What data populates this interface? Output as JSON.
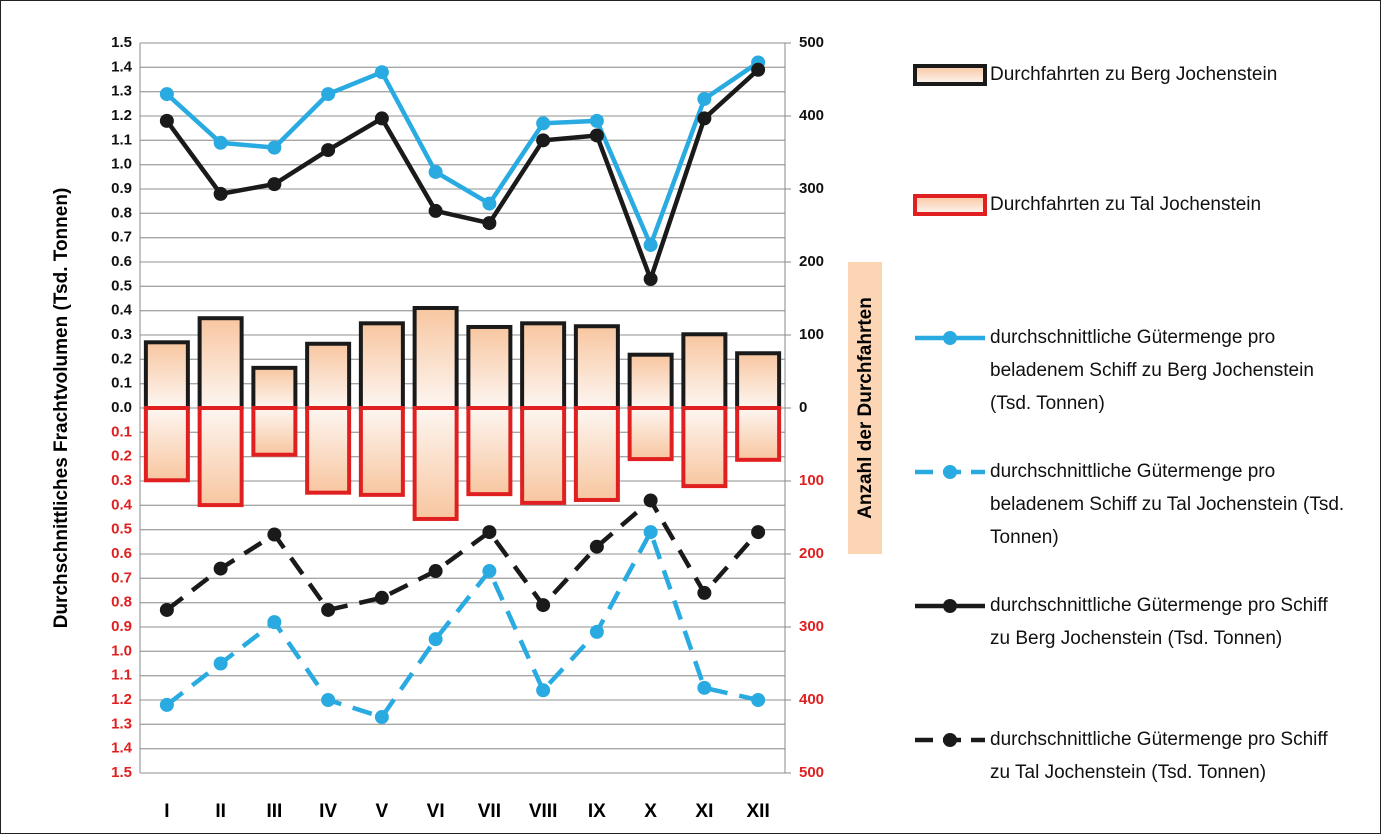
{
  "chart_data": {
    "type": "combo",
    "categories": [
      "I",
      "II",
      "III",
      "IV",
      "V",
      "VI",
      "VII",
      "VIII",
      "IX",
      "X",
      "XI",
      "XII"
    ],
    "y_axis_label": "Durchschnittliches Frachtvolumen (Tsd. Tonnen)",
    "y2_axis_label": "Anzahl der Durchfahrten",
    "ylim": [
      -1.5,
      1.5
    ],
    "yticks": [
      1.5,
      1.4,
      1.3,
      1.2,
      1.1,
      {
        "value": 1,
        "label": "1.0"
      },
      0.9,
      0.8,
      0.7,
      0.6,
      0.5,
      0.4,
      0.3,
      0.2,
      0.1,
      {
        "value": 0,
        "label": "0.0"
      },
      {
        "value": -0.1,
        "label": "0.1"
      },
      {
        "value": -0.2,
        "label": "0.2"
      },
      {
        "value": -0.3,
        "label": "0.3"
      },
      {
        "value": -0.4,
        "label": "0.4"
      },
      {
        "value": -0.5,
        "label": "0.5"
      },
      {
        "value": -0.6,
        "label": "0.6"
      },
      {
        "value": -0.7,
        "label": "0.7"
      },
      {
        "value": -0.8,
        "label": "0.8"
      },
      {
        "value": -0.9,
        "label": "0.9"
      },
      {
        "value": -1,
        "label": "1.0"
      },
      {
        "value": -1.1,
        "label": "1.1"
      },
      {
        "value": -1.2,
        "label": "1.2"
      },
      {
        "value": -1.3,
        "label": "1.3"
      },
      {
        "value": -1.4,
        "label": "1.4"
      },
      {
        "value": -1.5,
        "label": "1.5"
      }
    ],
    "y2lim": [
      -500,
      500
    ],
    "y2ticks": [
      500,
      400,
      300,
      200,
      100,
      0,
      {
        "value": -100,
        "label": "100"
      },
      {
        "value": -200,
        "label": "200"
      },
      {
        "value": -300,
        "label": "300"
      },
      {
        "value": -400,
        "label": "400"
      },
      {
        "value": -500,
        "label": "500"
      }
    ],
    "negative_tick_color": "#e02020",
    "grid": true,
    "series": [
      {
        "name": "Durchfahrten zu Berg Jochenstein",
        "type": "bar",
        "axis": "y2",
        "color": "#1a1a1a",
        "values": [
          90,
          123,
          55,
          88,
          116,
          137,
          111,
          116,
          112,
          73,
          101,
          75
        ]
      },
      {
        "name": "Durchfahrten zu Tal Jochenstein",
        "type": "bar",
        "axis": "y2",
        "color": "#e02020",
        "values": [
          -99,
          -133,
          -64,
          -116,
          -119,
          -152,
          -118,
          -130,
          -126,
          -70,
          -107,
          -71
        ]
      },
      {
        "name": "durchschnittliche Gütermenge pro beladenem Schiff zu Berg Jochenstein (Tsd. Tonnen)",
        "type": "line",
        "dashed": false,
        "color": "#29abe2",
        "values": [
          1.29,
          1.09,
          1.07,
          1.29,
          1.38,
          0.97,
          0.84,
          1.17,
          1.18,
          0.67,
          1.27,
          1.42
        ]
      },
      {
        "name": "durchschnittliche Gütermenge pro beladenem Schiff zu Tal Jochenstein (Tsd. Tonnen)",
        "type": "line",
        "dashed": true,
        "color": "#29abe2",
        "values": [
          -1.22,
          -1.05,
          -0.88,
          -1.2,
          -1.27,
          -0.95,
          -0.67,
          -1.16,
          -0.92,
          -0.51,
          -1.15,
          -1.2
        ]
      },
      {
        "name": "durchschnittliche Gütermenge pro Schiff zu Berg Jochenstein (Tsd. Tonnen)",
        "type": "line",
        "dashed": false,
        "color": "#1a1a1a",
        "values": [
          1.18,
          0.88,
          0.92,
          1.06,
          1.19,
          0.81,
          0.76,
          1.1,
          1.12,
          0.53,
          1.19,
          1.39
        ]
      },
      {
        "name": "durchschnittliche Gütermenge pro Schiff zu Tal Jochenstein (Tsd. Tonnen)",
        "type": "line",
        "dashed": true,
        "color": "#1a1a1a",
        "values": [
          -0.83,
          -0.66,
          -0.52,
          -0.83,
          -0.78,
          -0.67,
          -0.51,
          -0.81,
          -0.57,
          -0.38,
          -0.76,
          -0.51
        ]
      }
    ]
  }
}
